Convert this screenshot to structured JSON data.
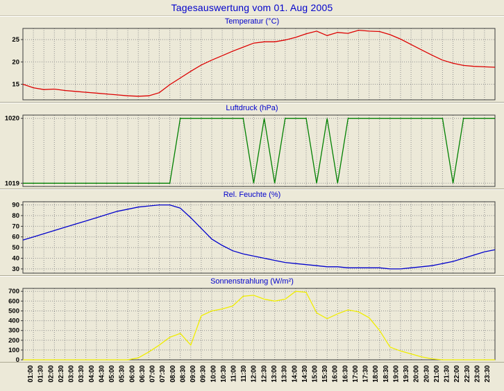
{
  "page": {
    "title": "Tagesauswertung vom 01. Aug 2005",
    "background_color": "#ece9d8",
    "title_color": "#0000cc"
  },
  "chart_data": {
    "type": "line",
    "layout": "4 stacked panels sharing one rotated time x-axis",
    "grid": true,
    "x_categories": [
      "01:00",
      "01:30",
      "02:00",
      "02:30",
      "03:00",
      "03:30",
      "04:00",
      "04:30",
      "05:00",
      "05:30",
      "06:00",
      "06:30",
      "07:00",
      "07:30",
      "08:00",
      "08:30",
      "09:00",
      "09:30",
      "10:00",
      "10:30",
      "11:00",
      "11:30",
      "12:00",
      "12:30",
      "13:00",
      "13:30",
      "14:00",
      "14:30",
      "15:00",
      "15:30",
      "16:00",
      "16:30",
      "17:00",
      "17:30",
      "18:00",
      "18:30",
      "19:00",
      "19:30",
      "20:00",
      "20:30",
      "21:00",
      "21:30",
      "22:00",
      "22:30",
      "23:00",
      "23:30"
    ],
    "panels": [
      {
        "title": "Temperatur (°C)",
        "color": "#dd0000",
        "ylim": [
          11.5,
          27.5
        ],
        "yticks": [
          15,
          20,
          25
        ],
        "values": [
          15.0,
          14.2,
          13.8,
          13.9,
          13.6,
          13.4,
          13.2,
          13.0,
          12.8,
          12.6,
          12.4,
          12.3,
          12.4,
          13.1,
          14.9,
          16.4,
          17.9,
          19.3,
          20.4,
          21.4,
          22.4,
          23.3,
          24.2,
          24.5,
          24.5,
          24.9,
          25.5,
          26.3,
          26.9,
          25.9,
          26.6,
          26.4,
          27.1,
          26.9,
          26.8,
          26.1,
          25.1,
          23.9,
          22.7,
          21.5,
          20.4,
          19.7,
          19.2,
          19.0,
          18.9,
          18.8
        ]
      },
      {
        "title": "Luftdruck (hPa)",
        "color": "#008000",
        "ylim": [
          1018.95,
          1020.05
        ],
        "yticks": [
          1019,
          1020
        ],
        "values": [
          1019,
          1019,
          1019,
          1019,
          1019,
          1019,
          1019,
          1019,
          1019,
          1019,
          1019,
          1019,
          1019,
          1019,
          1019,
          1020,
          1020,
          1020,
          1020,
          1020,
          1020,
          1020,
          1019,
          1020,
          1019,
          1020,
          1020,
          1020,
          1019,
          1020,
          1019,
          1020,
          1020,
          1020,
          1020,
          1020,
          1020,
          1020,
          1020,
          1020,
          1020,
          1019,
          1020,
          1020,
          1020,
          1020
        ]
      },
      {
        "title": "Rel. Feuchte (%)",
        "color": "#0000cc",
        "ylim": [
          26,
          93
        ],
        "yticks": [
          30,
          40,
          50,
          60,
          70,
          80,
          90
        ],
        "values": [
          57,
          60,
          63,
          66,
          69,
          72,
          75,
          78,
          81,
          84,
          86,
          88,
          89,
          90,
          90,
          87,
          78,
          68,
          58,
          52,
          47,
          44,
          42,
          40,
          38,
          36,
          35,
          34,
          33,
          32,
          32,
          31,
          31,
          31,
          31,
          30,
          30,
          31,
          32,
          33,
          35,
          37,
          40,
          43,
          46,
          48
        ]
      },
      {
        "title": "Sonnenstrahlung (W/m²)",
        "color": "#f0ed00",
        "ylim": [
          0,
          730
        ],
        "yticks": [
          0,
          100,
          200,
          300,
          400,
          500,
          600,
          700
        ],
        "values": [
          0,
          0,
          0,
          0,
          0,
          0,
          0,
          0,
          0,
          0,
          0,
          20,
          80,
          150,
          230,
          270,
          150,
          450,
          500,
          520,
          550,
          650,
          660,
          620,
          600,
          620,
          700,
          690,
          480,
          420,
          470,
          510,
          490,
          430,
          300,
          130,
          90,
          60,
          30,
          10,
          0,
          0,
          0,
          0,
          0,
          0
        ]
      }
    ]
  }
}
